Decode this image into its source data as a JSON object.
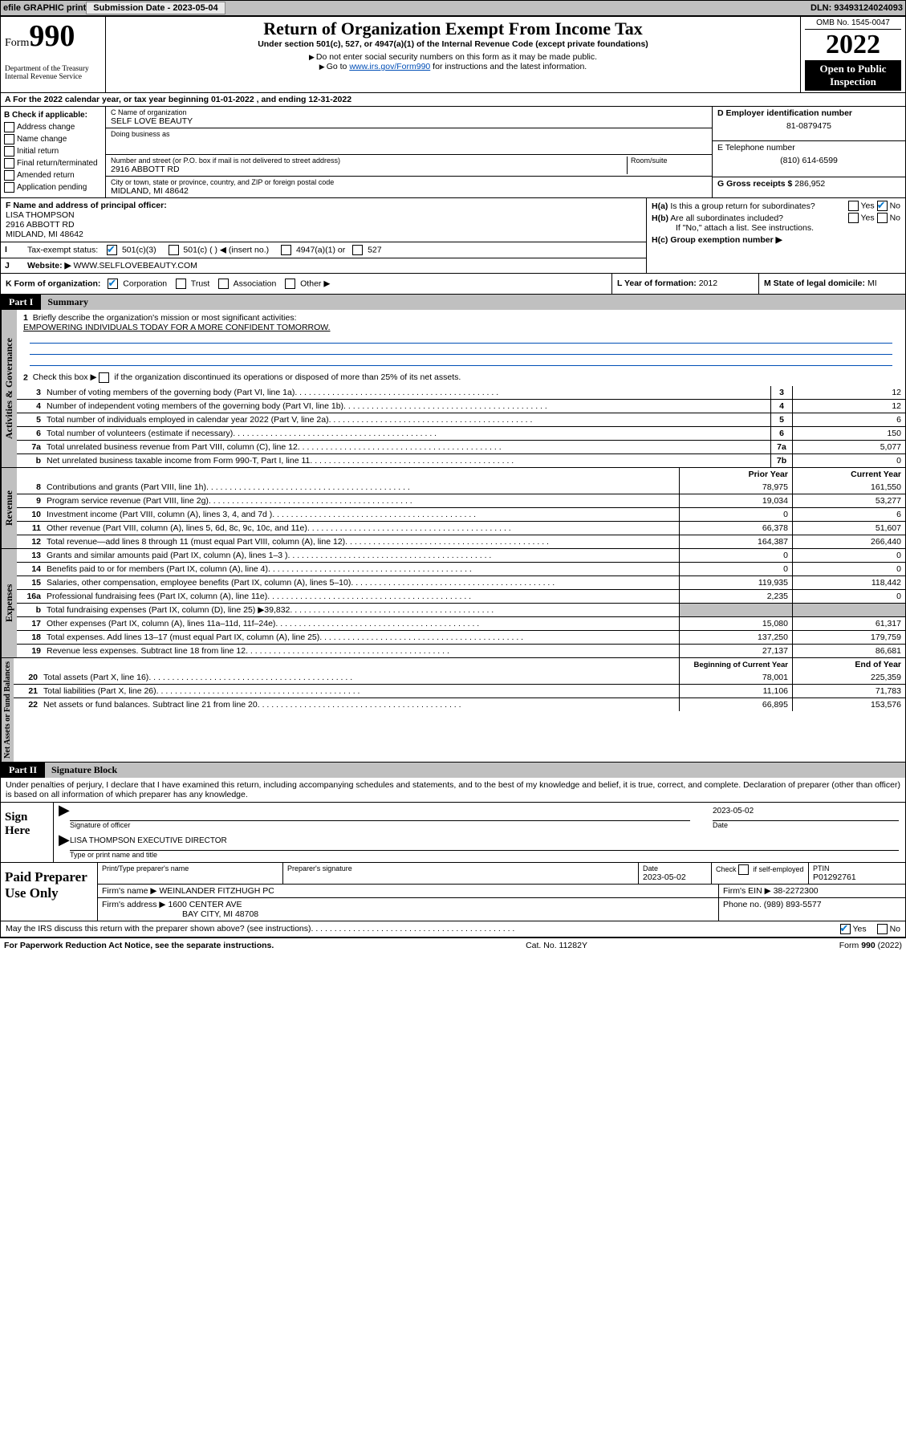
{
  "top_bar": {
    "efile": "efile GRAPHIC print",
    "sub_label": "Submission Date - 2023-05-04",
    "dln": "DLN: 93493124024093"
  },
  "header": {
    "form_word": "Form",
    "form_number": "990",
    "title": "Return of Organization Exempt From Income Tax",
    "subtitle": "Under section 501(c), 527, or 4947(a)(1) of the Internal Revenue Code (except private foundations)",
    "warn": "Do not enter social security numbers on this form as it may be made public.",
    "goto_pre": "Go to ",
    "goto_link": "www.irs.gov/Form990",
    "goto_post": " for instructions and the latest information.",
    "dept": "Department of the Treasury\nInternal Revenue Service",
    "omb": "OMB No. 1545-0047",
    "year": "2022",
    "public": "Open to Public Inspection"
  },
  "period": {
    "label_a": "A For the 2022 calendar year, or tax year beginning ",
    "begin": "01-01-2022",
    "mid": " , and ending ",
    "end": "12-31-2022"
  },
  "sectionB": {
    "label": "B Check if applicable:",
    "items": [
      "Address change",
      "Name change",
      "Initial return",
      "Final return/terminated",
      "Amended return",
      "Application pending"
    ]
  },
  "sectionC": {
    "name_label": "C Name of organization",
    "name": "SELF LOVE BEAUTY",
    "dba_label": "Doing business as",
    "addr_label": "Number and street (or P.O. box if mail is not delivered to street address)",
    "room_label": "Room/suite",
    "addr": "2916 ABBOTT RD",
    "city_label": "City or town, state or province, country, and ZIP or foreign postal code",
    "city": "MIDLAND, MI  48642"
  },
  "sectionD": {
    "label": "D Employer identification number",
    "val": "81-0879475"
  },
  "sectionE": {
    "label": "E Telephone number",
    "val": "(810) 614-6599"
  },
  "sectionG": {
    "label": "G Gross receipts $ ",
    "val": "286,952"
  },
  "sectionF": {
    "label": "F Name and address of principal officer:",
    "name": "LISA THOMPSON",
    "addr1": "2916 ABBOTT RD",
    "addr2": "MIDLAND, MI  48642"
  },
  "sectionH": {
    "a_label": "H(a)  Is this a group return for subordinates?",
    "b_label": "H(b)  Are all subordinates included?",
    "b_note": "If \"No,\" attach a list. See instructions.",
    "c_label": "H(c)  Group exemption number ▶"
  },
  "sectionI": {
    "label": "Tax-exempt status:",
    "opt1": "501(c)(3)",
    "opt2": "501(c) (  ) ◀ (insert no.)",
    "opt3": "4947(a)(1) or",
    "opt4": "527"
  },
  "sectionJ": {
    "label": "Website: ▶",
    "val": "WWW.SELFLOVEBEAUTY.COM"
  },
  "sectionK": {
    "label": "K Form of organization:",
    "opts": [
      "Corporation",
      "Trust",
      "Association",
      "Other ▶"
    ]
  },
  "sectionL": {
    "label": "L Year of formation: ",
    "val": "2012"
  },
  "sectionM": {
    "label": "M State of legal domicile: ",
    "val": "MI"
  },
  "part1": {
    "num": "Part I",
    "title": "Summary",
    "q1": "Briefly describe the organization's mission or most significant activities:",
    "mission": "EMPOWERING INDIVIDUALS TODAY FOR A MORE CONFIDENT TOMORROW.",
    "q2": "Check this box ▶      if the organization discontinued its operations or disposed of more than 25% of its net assets.",
    "rows_gov": [
      {
        "n": "3",
        "t": "Number of voting members of the governing body (Part VI, line 1a)",
        "box": "3",
        "v": "12"
      },
      {
        "n": "4",
        "t": "Number of independent voting members of the governing body (Part VI, line 1b)",
        "box": "4",
        "v": "12"
      },
      {
        "n": "5",
        "t": "Total number of individuals employed in calendar year 2022 (Part V, line 2a)",
        "box": "5",
        "v": "6"
      },
      {
        "n": "6",
        "t": "Total number of volunteers (estimate if necessary)",
        "box": "6",
        "v": "150"
      },
      {
        "n": "7a",
        "t": "Total unrelated business revenue from Part VIII, column (C), line 12",
        "box": "7a",
        "v": "5,077"
      },
      {
        "n": "b",
        "t": "Net unrelated business taxable income from Form 990-T, Part I, line 11",
        "box": "7b",
        "v": "0"
      }
    ],
    "col_prior": "Prior Year",
    "col_current": "Current Year",
    "rows_rev": [
      {
        "n": "8",
        "t": "Contributions and grants (Part VIII, line 1h)",
        "p": "78,975",
        "c": "161,550"
      },
      {
        "n": "9",
        "t": "Program service revenue (Part VIII, line 2g)",
        "p": "19,034",
        "c": "53,277"
      },
      {
        "n": "10",
        "t": "Investment income (Part VIII, column (A), lines 3, 4, and 7d )",
        "p": "0",
        "c": "6"
      },
      {
        "n": "11",
        "t": "Other revenue (Part VIII, column (A), lines 5, 6d, 8c, 9c, 10c, and 11e)",
        "p": "66,378",
        "c": "51,607"
      },
      {
        "n": "12",
        "t": "Total revenue—add lines 8 through 11 (must equal Part VIII, column (A), line 12)",
        "p": "164,387",
        "c": "266,440"
      }
    ],
    "rows_exp": [
      {
        "n": "13",
        "t": "Grants and similar amounts paid (Part IX, column (A), lines 1–3 )",
        "p": "0",
        "c": "0"
      },
      {
        "n": "14",
        "t": "Benefits paid to or for members (Part IX, column (A), line 4)",
        "p": "0",
        "c": "0"
      },
      {
        "n": "15",
        "t": "Salaries, other compensation, employee benefits (Part IX, column (A), lines 5–10)",
        "p": "119,935",
        "c": "118,442"
      },
      {
        "n": "16a",
        "t": "Professional fundraising fees (Part IX, column (A), line 11e)",
        "p": "2,235",
        "c": "0"
      },
      {
        "n": "b",
        "t": "Total fundraising expenses (Part IX, column (D), line 25) ▶39,832",
        "p": "",
        "c": "",
        "gray": true
      },
      {
        "n": "17",
        "t": "Other expenses (Part IX, column (A), lines 11a–11d, 11f–24e)",
        "p": "15,080",
        "c": "61,317"
      },
      {
        "n": "18",
        "t": "Total expenses. Add lines 13–17 (must equal Part IX, column (A), line 25)",
        "p": "137,250",
        "c": "179,759"
      },
      {
        "n": "19",
        "t": "Revenue less expenses. Subtract line 18 from line 12",
        "p": "27,137",
        "c": "86,681"
      }
    ],
    "col_begin": "Beginning of Current Year",
    "col_end": "End of Year",
    "rows_net": [
      {
        "n": "20",
        "t": "Total assets (Part X, line 16)",
        "p": "78,001",
        "c": "225,359"
      },
      {
        "n": "21",
        "t": "Total liabilities (Part X, line 26)",
        "p": "11,106",
        "c": "71,783"
      },
      {
        "n": "22",
        "t": "Net assets or fund balances. Subtract line 21 from line 20",
        "p": "66,895",
        "c": "153,576"
      }
    ],
    "tab_gov": "Activities & Governance",
    "tab_rev": "Revenue",
    "tab_exp": "Expenses",
    "tab_net": "Net Assets or Fund Balances"
  },
  "part2": {
    "num": "Part II",
    "title": "Signature Block",
    "decl": "Under penalties of perjury, I declare that I have examined this return, including accompanying schedules and statements, and to the best of my knowledge and belief, it is true, correct, and complete. Declaration of preparer (other than officer) is based on all information of which preparer has any knowledge.",
    "sign_here": "Sign Here",
    "sig_officer": "Signature of officer",
    "sig_date": "Date",
    "sig_date_val": "2023-05-02",
    "officer_name": "LISA THOMPSON  EXECUTIVE DIRECTOR",
    "type_name": "Type or print name and title",
    "paid": "Paid Preparer Use Only",
    "prep_hdr": [
      "Print/Type preparer's name",
      "Preparer's signature",
      "Date",
      "",
      "PTIN"
    ],
    "prep_date": "2023-05-02",
    "prep_check": "Check       if self-employed",
    "ptin": "P01292761",
    "firm_name_l": "Firm's name     ▶",
    "firm_name": "WEINLANDER FITZHUGH PC",
    "firm_ein_l": "Firm's EIN ▶ ",
    "firm_ein": "38-2272300",
    "firm_addr_l": "Firm's address ▶",
    "firm_addr1": "1600 CENTER AVE",
    "firm_addr2": "BAY CITY, MI  48708",
    "phone_l": "Phone no. ",
    "phone": "(989) 893-5577",
    "discuss": "May the IRS discuss this return with the preparer shown above? (see instructions)"
  },
  "footer": {
    "left": "For Paperwork Reduction Act Notice, see the separate instructions.",
    "mid": "Cat. No. 11282Y",
    "right_a": "Form ",
    "right_b": "990",
    "right_c": " (2022)"
  },
  "yes": "Yes",
  "no": "No"
}
